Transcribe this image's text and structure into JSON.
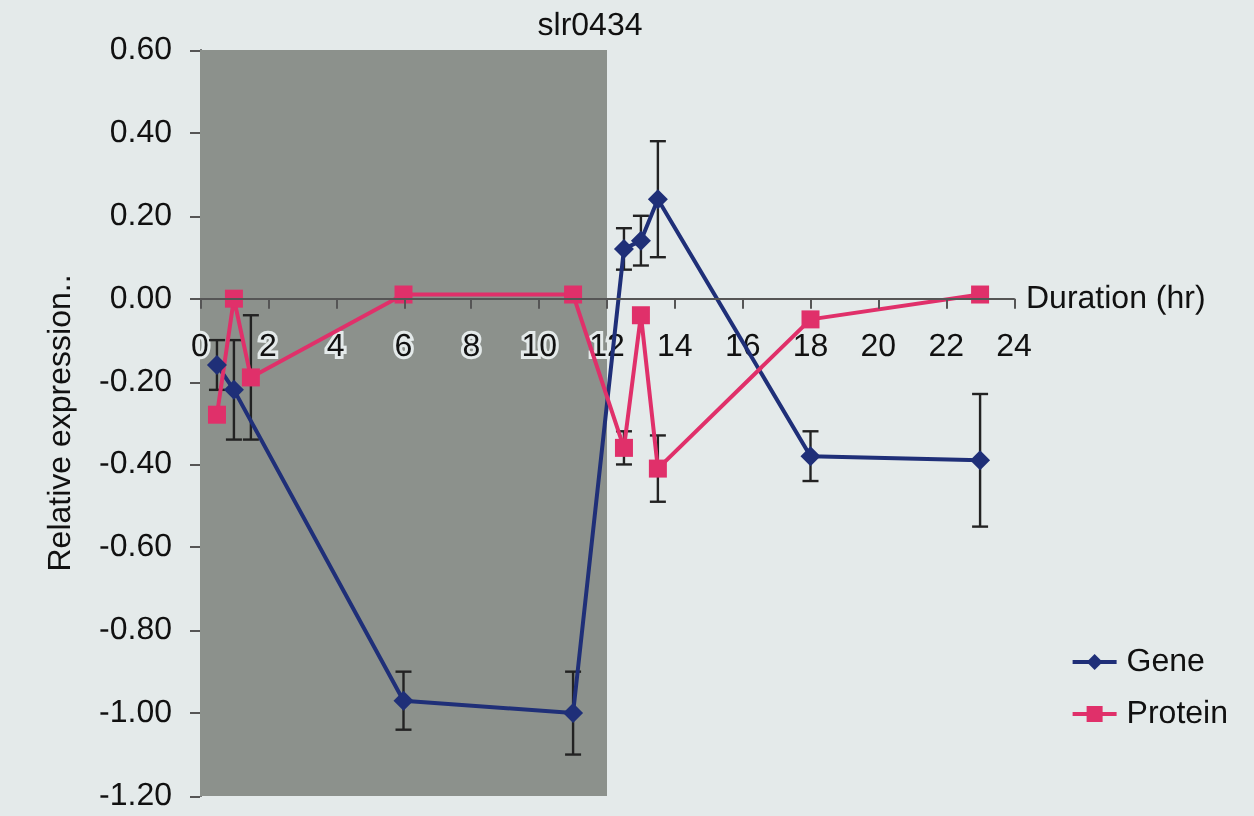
{
  "chart_data": {
    "type": "line",
    "title": "slr0434",
    "xlabel": "Duration (hr)",
    "ylabel": "Relative expression..",
    "xlim": [
      0,
      24
    ],
    "xticks": [
      0,
      2,
      4,
      6,
      8,
      10,
      12,
      14,
      16,
      18,
      20,
      22,
      24
    ],
    "ylim": [
      -1.2,
      0.6
    ],
    "yticks": [
      {
        "value": -1.2,
        "label": "-1.20"
      },
      {
        "value": -1,
        "label": "-1.00"
      },
      {
        "value": -0.8,
        "label": "-0.80"
      },
      {
        "value": -0.6,
        "label": "-0.60"
      },
      {
        "value": -0.4,
        "label": "-0.40"
      },
      {
        "value": -0.2,
        "label": "-0.20"
      },
      {
        "value": 0,
        "label": "0.00"
      },
      {
        "value": 0.2,
        "label": "0.20"
      },
      {
        "value": 0.4,
        "label": "0.40"
      },
      {
        "value": 0.6,
        "label": "0.60"
      }
    ],
    "grid": false,
    "legend": "bottom right",
    "bands": [
      {
        "axis": "x",
        "from": 0,
        "to": 12,
        "color": "#8c918c"
      }
    ],
    "series": [
      {
        "name": "Gene",
        "color": "#1f2f78",
        "marker": "diamond",
        "x": [
          0.5,
          1,
          6,
          11,
          12.5,
          13,
          13.5,
          18,
          23
        ],
        "values": [
          -0.16,
          -0.22,
          -0.97,
          -1.0,
          0.12,
          0.14,
          0.24,
          -0.38,
          -0.39
        ],
        "errors": [
          0.06,
          0.12,
          0.07,
          0.1,
          0.05,
          0.06,
          0.14,
          0.06,
          0.16
        ]
      },
      {
        "name": "Protein",
        "color": "#e0306a",
        "marker": "square",
        "x": [
          0.5,
          1,
          1.5,
          6,
          11,
          12.5,
          13,
          13.5,
          18,
          23
        ],
        "values": [
          -0.28,
          0,
          -0.19,
          0.01,
          0.01,
          -0.36,
          -0.04,
          -0.41,
          -0.05,
          0.01
        ],
        "errors": [
          null,
          null,
          0.15,
          null,
          null,
          0.04,
          null,
          0.08,
          null,
          null
        ]
      }
    ]
  }
}
